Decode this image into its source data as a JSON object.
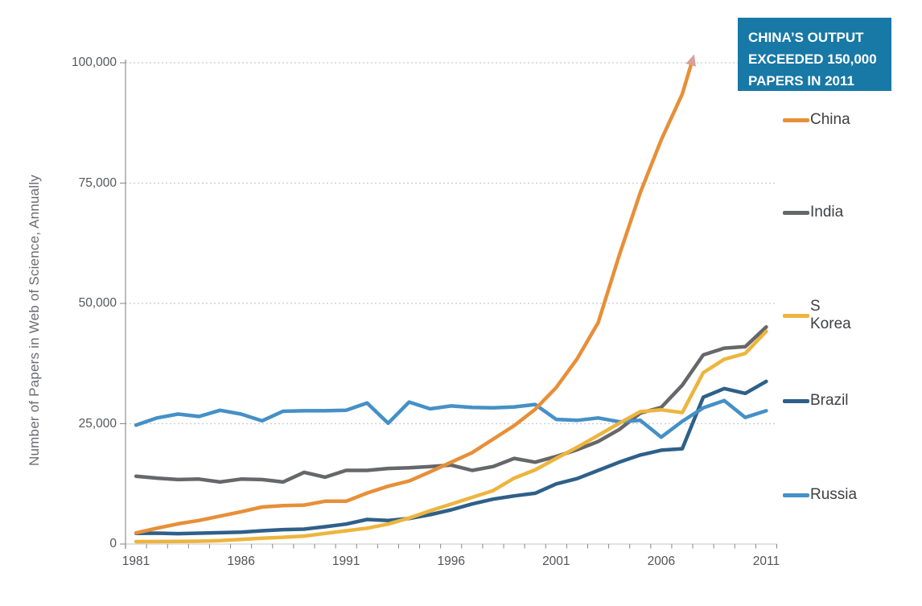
{
  "page": {
    "background": "#ffffff"
  },
  "y_axis": {
    "title": "Number of Papers in Web of Science, Annually",
    "tick_labels": [
      "0",
      "25,000",
      "50,000",
      "75,000",
      "100,000"
    ],
    "tick_values": [
      0,
      25000,
      50000,
      75000,
      100000
    ]
  },
  "x_axis": {
    "tick_labels": [
      "1981",
      "1986",
      "1991",
      "1996",
      "2001",
      "2006",
      "2011"
    ],
    "tick_years": [
      1981,
      1986,
      1991,
      1996,
      2001,
      2006,
      2011
    ]
  },
  "callout": {
    "text": "CHINA’S OUTPUT\nEXCEEDED 150,000\nPAPERS IN 2011",
    "background": "#1878a6",
    "text_color": "#ffffff"
  },
  "legend": {
    "position": "right",
    "items": [
      {
        "label": "China",
        "color": "#e78f38"
      },
      {
        "label": "India",
        "color": "#66676a"
      },
      {
        "label": "S Korea",
        "color": "#edb53e"
      },
      {
        "label": "Brazil",
        "color": "#2e6089"
      },
      {
        "label": "Russia",
        "color": "#4590c6"
      }
    ]
  },
  "colors": {
    "gridline": "#c5cbd4",
    "y_axis_line": "#97999c",
    "x_axis_line": "#c2c4c6",
    "tick": "#85878a",
    "arrowhead": "#d8a097"
  },
  "chart_data": {
    "type": "line",
    "ylabel": "Number of Papers in Web of Science, Annually",
    "xlabel": "",
    "ylim": [
      0,
      100000
    ],
    "gridline_values": [
      25000,
      50000,
      75000,
      100000
    ],
    "grid_style": "dotted",
    "legend_position": "right",
    "x": [
      1981,
      1982,
      1983,
      1984,
      1985,
      1986,
      1987,
      1988,
      1989,
      1990,
      1991,
      1992,
      1993,
      1994,
      1995,
      1996,
      1997,
      1998,
      1999,
      2000,
      2001,
      2002,
      2003,
      2004,
      2005,
      2006,
      2007,
      2008,
      2009,
      2010,
      2011
    ],
    "z_order": [
      "India",
      "Brazil",
      "Russia",
      "S Korea",
      "China"
    ],
    "series": [
      {
        "name": "China",
        "color": "#e78f38",
        "values": [
          2300,
          3300,
          4200,
          4900,
          5800,
          6700,
          7700,
          8000,
          8100,
          8900,
          8900,
          10600,
          12000,
          13100,
          15000,
          17000,
          19000,
          21800,
          24600,
          28000,
          32500,
          38500,
          46000,
          60000,
          73000,
          84000,
          93500,
          null,
          null,
          null,
          null
        ],
        "truncated_tip": {
          "year": 2007.5,
          "value": 100800
        },
        "note": "Line runs off the top of the chart and ends in an arrowhead just above 100,000; callout states China exceeded 150,000 papers in 2011."
      },
      {
        "name": "India",
        "color": "#66676a",
        "values": [
          14100,
          13700,
          13400,
          13500,
          12900,
          13500,
          13400,
          12900,
          14900,
          13900,
          15300,
          15300,
          15700,
          15850,
          16100,
          16400,
          15300,
          16100,
          17800,
          17000,
          18200,
          19600,
          21300,
          23800,
          27200,
          28400,
          33000,
          39300,
          40700,
          41000,
          45100
        ]
      },
      {
        "name": "S Korea",
        "color": "#edb53e",
        "values": [
          500,
          520,
          550,
          580,
          700,
          950,
          1200,
          1400,
          1650,
          2200,
          2760,
          3300,
          4150,
          5400,
          6900,
          8300,
          9700,
          11100,
          13700,
          15400,
          17800,
          20100,
          22600,
          25100,
          27500,
          27900,
          27300,
          35600,
          38400,
          39600,
          44200
        ]
      },
      {
        "name": "Brazil",
        "color": "#2e6089",
        "values": [
          2200,
          2250,
          2150,
          2250,
          2350,
          2480,
          2760,
          3000,
          3100,
          3600,
          4150,
          5100,
          4900,
          5300,
          6100,
          7100,
          8330,
          9330,
          10000,
          10560,
          12500,
          13600,
          15300,
          17000,
          18500,
          19500,
          19800,
          30500,
          32300,
          31300,
          33800
        ]
      },
      {
        "name": "Russia",
        "color": "#4590c6",
        "values": [
          24700,
          26200,
          27000,
          26500,
          27800,
          27000,
          25600,
          27600,
          27700,
          27700,
          27800,
          29300,
          25100,
          29500,
          28100,
          28700,
          28400,
          28300,
          28500,
          29000,
          25900,
          25700,
          26200,
          25400,
          25700,
          22200,
          25500,
          28300,
          29800,
          26300,
          27700
        ]
      }
    ],
    "annotations": [
      {
        "type": "callout-box",
        "text": "CHINA’S OUTPUT EXCEEDED 150,000 PAPERS IN 2011"
      },
      {
        "type": "arrowhead",
        "series": "China",
        "at_year": 2007.5,
        "at_value": 100800,
        "color": "#d8a097"
      }
    ]
  }
}
